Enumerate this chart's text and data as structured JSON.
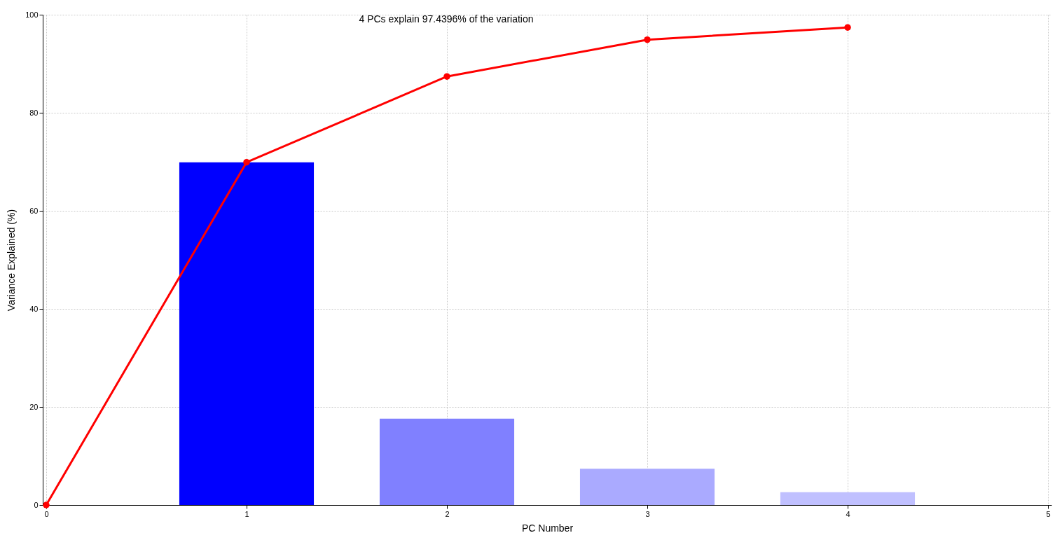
{
  "chart_data": {
    "type": "bar",
    "xlabel": "PC Number",
    "ylabel": "Variance Explained (%)",
    "annotations": [
      "4 PCs explain 97.4396% of the variation"
    ],
    "xlim": [
      0,
      5
    ],
    "xticks": [
      0,
      1,
      2,
      3,
      4,
      5
    ],
    "ylim": [
      0,
      100
    ],
    "yticks": [
      0,
      20,
      40,
      60,
      80,
      100
    ],
    "grid": true,
    "series": [
      {
        "x": [
          1,
          2,
          3,
          4
        ],
        "values": [
          69.9,
          17.6,
          7.4,
          2.6
        ],
        "colors": [
          "#0000ff",
          "#8080ff",
          "#aaaaff",
          "#c0c0ff"
        ]
      },
      {
        "type": "line",
        "x": [
          0,
          1,
          2,
          3,
          4
        ],
        "values": [
          0,
          69.9,
          87.4,
          94.9,
          97.4
        ],
        "color": "#ff0000",
        "marker": "circle"
      }
    ]
  }
}
